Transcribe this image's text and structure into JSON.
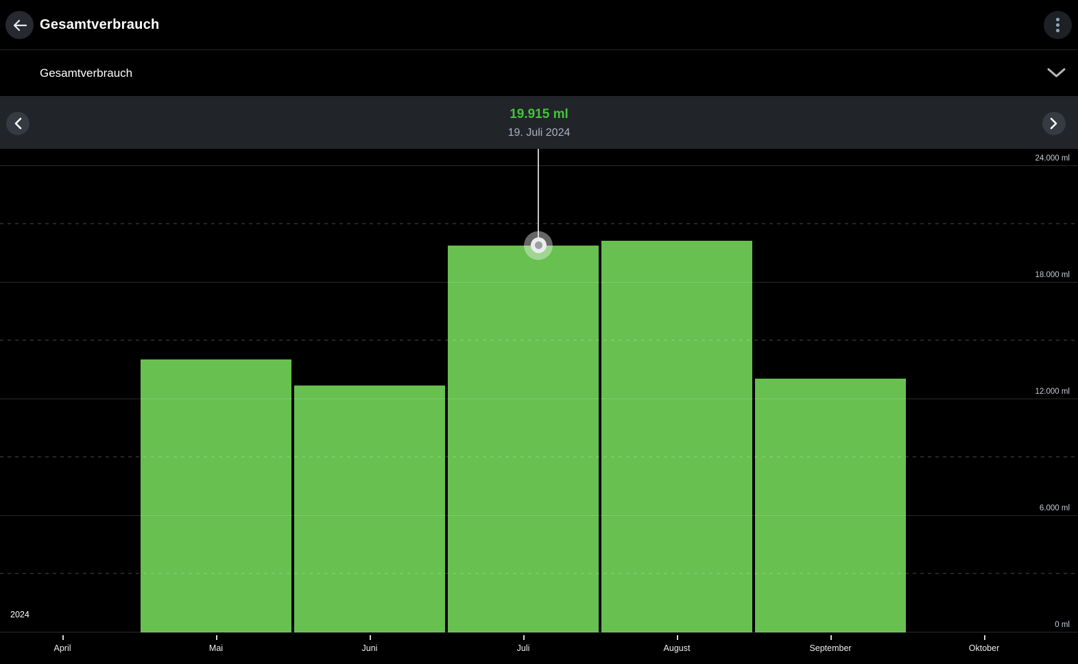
{
  "header": {
    "title": "Gesamtverbrauch"
  },
  "section": {
    "title": "Gesamtverbrauch"
  },
  "selection": {
    "value": "19.915 ml",
    "date": "19. Juli 2024"
  },
  "colors": {
    "bar_green": "#67c04f",
    "value_green": "#45c33c",
    "strip_background": "#212429"
  },
  "chart_data": {
    "type": "bar",
    "title": "Gesamtverbrauch",
    "unit": "ml",
    "categories": [
      "April",
      "Mai",
      "Juni",
      "Juli",
      "August",
      "September",
      "Oktober"
    ],
    "values": [
      null,
      14050,
      12700,
      19915,
      20150,
      13050,
      null
    ],
    "xlabel": "",
    "ylabel": "ml",
    "ylim": [
      0,
      24000
    ],
    "y_major_step": 6000,
    "y_minor_step": 3000,
    "y_tick_labels": [
      "0 ml",
      "6.000 ml",
      "12.000 ml",
      "18.000 ml",
      "24.000 ml"
    ],
    "grid": "major solid, minor dashed",
    "legend": "none",
    "year_label": "2024",
    "selected": {
      "category": "Juli",
      "value": 19915,
      "display_value": "19.915 ml",
      "date": "19. Juli 2024",
      "marker_fraction": 0.6
    }
  }
}
